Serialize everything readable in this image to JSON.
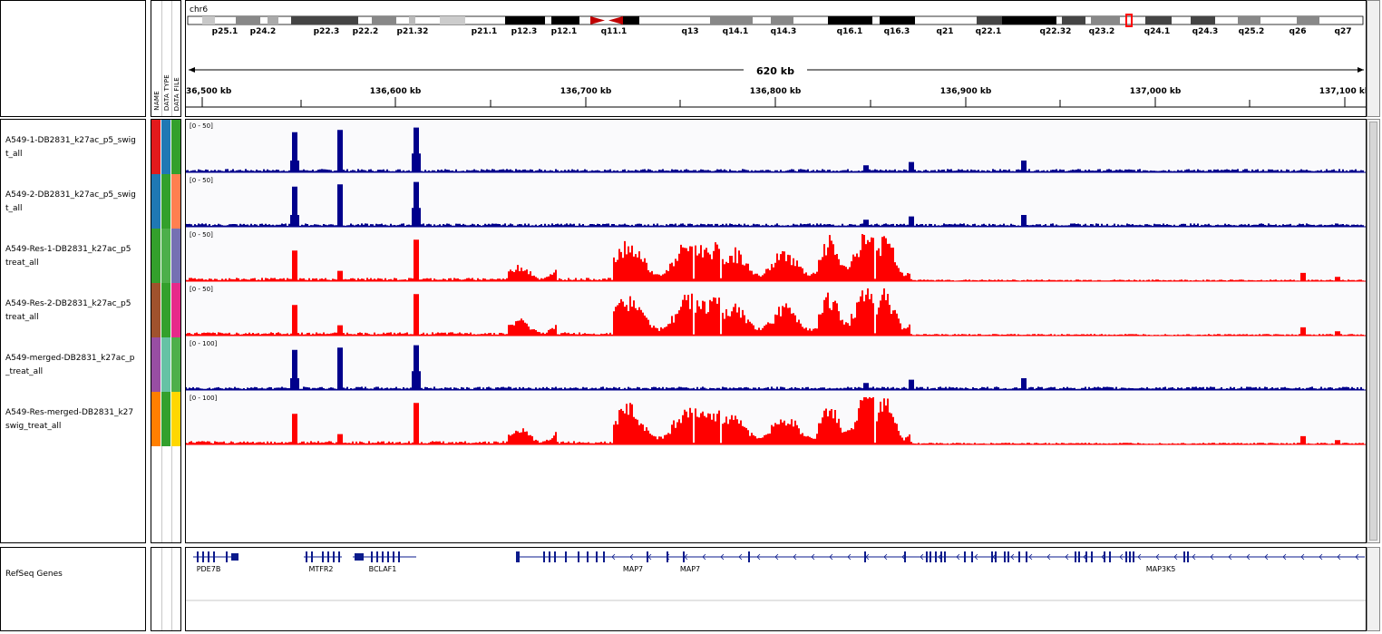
{
  "chromosome": {
    "name": "chr6",
    "bands": [
      "p25.1",
      "p24.2",
      "p22.3",
      "p22.2",
      "p21.32",
      "p21.1",
      "p12.3",
      "p12.1",
      "q11.1",
      "q13",
      "q14.1",
      "q14.3",
      "q16.1",
      "q16.3",
      "q21",
      "q22.1",
      "q22.32",
      "q23.2",
      "q24.1",
      "q24.3",
      "q25.2",
      "q26",
      "q27"
    ]
  },
  "ruler": {
    "span_label": "620 kb",
    "ticks": [
      "36,500 kb",
      "136,600 kb",
      "136,700 kb",
      "136,800 kb",
      "136,900 kb",
      "137,000 kb",
      "137,100 kb"
    ]
  },
  "attribute_headers": [
    "NAME",
    "DATA TYPE",
    "DATA FILE"
  ],
  "tracks": [
    {
      "label": "A549-1-DB2831_k27ac_p5_swig\nt_all",
      "range": "[0 - 50]",
      "color": "#00008c",
      "attrs": [
        "#e31a1c",
        "#1f78b4",
        "#33a02c"
      ]
    },
    {
      "label": "A549-2-DB2831_k27ac_p5_swig\nt_all",
      "range": "[0 - 50]",
      "color": "#00008c",
      "attrs": [
        "#1f78b4",
        "#33a02c",
        "#ff7f50"
      ]
    },
    {
      "label": "A549-Res-1-DB2831_k27ac_p5\ntreat_all",
      "range": "[0 - 50]",
      "color": "#ff0000",
      "attrs": [
        "#33a02c",
        "#4daf4a",
        "#7570b3"
      ]
    },
    {
      "label": "A549-Res-2-DB2831_k27ac_p5\ntreat_all",
      "range": "[0 - 50]",
      "color": "#ff0000",
      "attrs": [
        "#a0522d",
        "#33a02c",
        "#e7298a"
      ]
    },
    {
      "label": "A549-merged-DB2831_k27ac_p\n_treat_all",
      "range": "[0 - 100]",
      "color": "#00008c",
      "attrs": [
        "#984ea3",
        "#66c2a5",
        "#4daf4a"
      ]
    },
    {
      "label": "A549-Res-merged-DB2831_k27\nswig_treat_all",
      "range": "[0 - 100]",
      "color": "#ff0000",
      "attrs": [
        "#ff7f00",
        "#33a02c",
        "#ffd700"
      ]
    }
  ],
  "genes_track": {
    "label": "RefSeq Genes",
    "genes": [
      "PDE7B",
      "MTFR2",
      "BCLAF1",
      "MAP7",
      "MAP7",
      "MAP3K5"
    ]
  }
}
